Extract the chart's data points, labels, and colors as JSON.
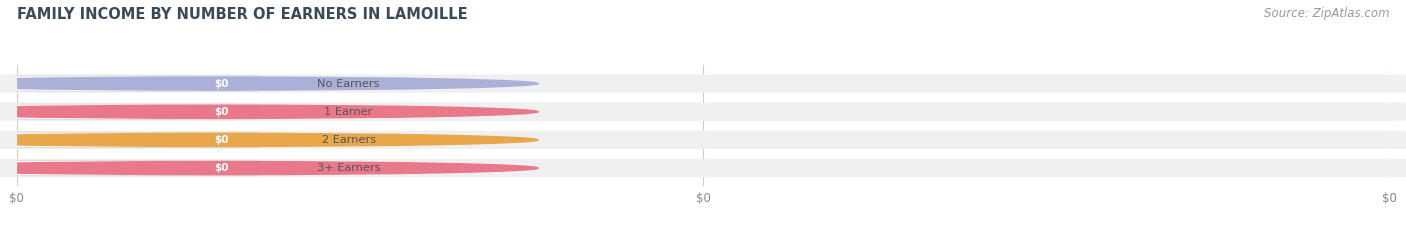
{
  "title": "FAMILY INCOME BY NUMBER OF EARNERS IN LAMOILLE",
  "source": "Source: ZipAtlas.com",
  "categories": [
    "No Earners",
    "1 Earner",
    "2 Earners",
    "3+ Earners"
  ],
  "values": [
    0,
    0,
    0,
    0
  ],
  "pill_colors": [
    "#aab0d8",
    "#e8788a",
    "#e8a84a",
    "#e8788a"
  ],
  "value_labels": [
    "$0",
    "$0",
    "$0",
    "$0"
  ],
  "title_color": "#3a4a5a",
  "title_fontsize": 10.5,
  "source_fontsize": 8.5,
  "bar_height": 0.62,
  "figsize": [
    14.06,
    2.33
  ],
  "dpi": 100,
  "bg_bar_color": "#f0f0f0",
  "label_text_color": "#555555",
  "value_text_color": "#ffffff",
  "grid_color": "#cccccc",
  "tick_color": "#888888",
  "tick_fontsize": 8.5
}
